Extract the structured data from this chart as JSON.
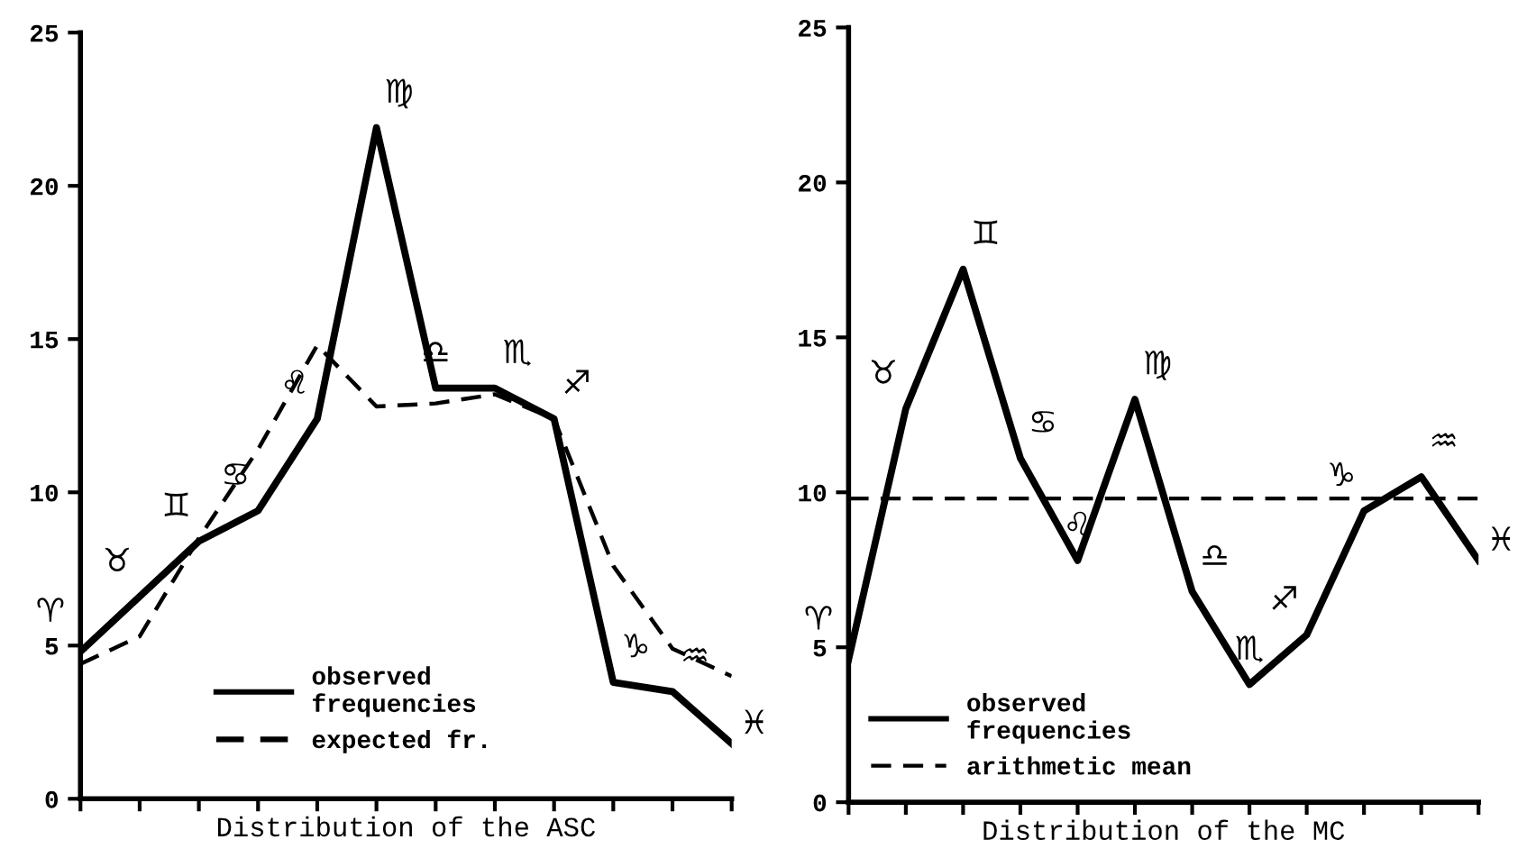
{
  "chart_data": [
    {
      "type": "line",
      "xlabel": "Distribution of the ASC",
      "categories": [
        null,
        null,
        null,
        null,
        null,
        null,
        null,
        null,
        null,
        null,
        null,
        null
      ],
      "series": [
        {
          "name": "observed\nfrequencies",
          "color": "#000000",
          "line_style": "solid",
          "values": [
            4.8,
            6.6,
            8.4,
            9.4,
            12.4,
            21.9,
            13.4,
            13.4,
            12.4,
            3.8,
            3.5,
            1.8
          ]
        },
        {
          "name": "expected fr.",
          "color": "#000000",
          "line_style": "dashed",
          "values": [
            4.4,
            5.3,
            8.5,
            11.4,
            14.8,
            12.8,
            12.9,
            13.2,
            12.4,
            7.6,
            4.9,
            4.0
          ]
        }
      ],
      "annotations": [
        "♈",
        "♉",
        "♊",
        "♋",
        "♌",
        "♍",
        "♎",
        "♏",
        "♐",
        "♑",
        "♒",
        "♓"
      ],
      "ylim": [
        0,
        25
      ],
      "yticks": [
        0,
        5,
        10,
        15,
        20,
        25
      ],
      "tick_labels": "y",
      "grid": false,
      "legend": "bottom",
      "marker": "none"
    },
    {
      "type": "line",
      "xlabel": "Distribution of the MC",
      "categories": [
        null,
        null,
        null,
        null,
        null,
        null,
        null,
        null,
        null,
        null,
        null,
        null
      ],
      "series": [
        {
          "name": "observed\nfrequencies",
          "color": "#000000",
          "line_style": "solid",
          "values": [
            4.6,
            12.7,
            17.2,
            11.1,
            7.8,
            13.0,
            6.8,
            3.8,
            5.4,
            9.4,
            10.5,
            7.8
          ]
        }
      ],
      "ref_lines": [
        {
          "axis": "y",
          "value": 9.8,
          "label": "arithmetic mean",
          "color": "#000000",
          "line_style": "dashed"
        }
      ],
      "annotations": [
        "♈",
        "♉",
        "♊",
        "♋",
        "♌",
        "♍",
        "♎",
        "♏",
        "♐",
        "♑",
        "♒",
        "♓"
      ],
      "ylim": [
        0,
        25
      ],
      "yticks": [
        0,
        5,
        10,
        15,
        20,
        25
      ],
      "tick_labels": "y",
      "grid": false,
      "legend": "bottom left",
      "marker": "none"
    }
  ]
}
